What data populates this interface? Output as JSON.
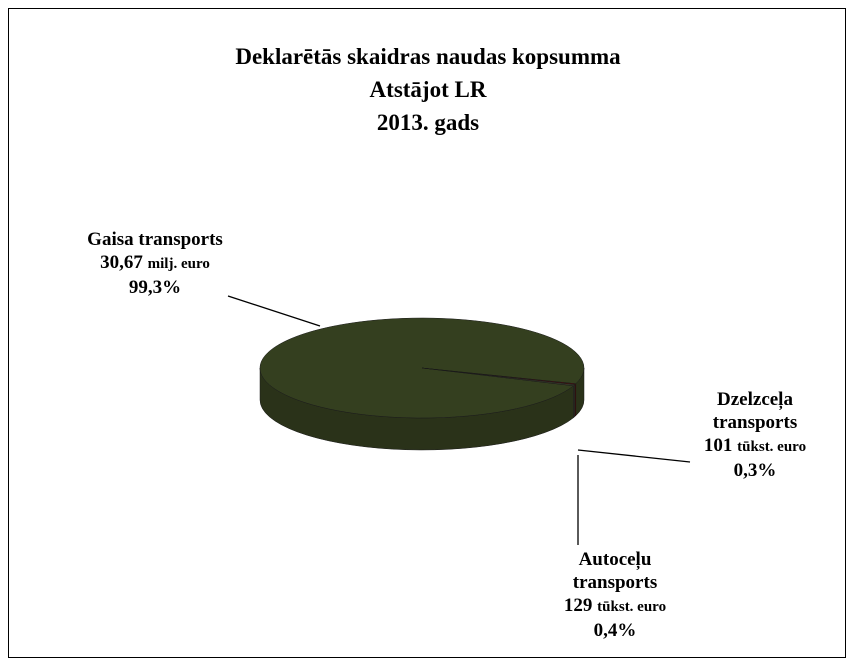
{
  "chart_data": {
    "type": "pie",
    "title_lines": [
      "Deklarētās skaidras naudas kopsumma",
      "Atstājot LR",
      "2013. gads"
    ],
    "categories": [
      "Gaisa transports",
      "Dzelzceļa transports",
      "Autoceļu transports"
    ],
    "values": [
      99.3,
      0.3,
      0.4
    ],
    "value_labels": [
      "99,3%",
      "0,3%",
      "0,4%"
    ],
    "amount_labels": [
      "30,67",
      "101",
      "129"
    ],
    "amount_units": [
      "milj. euro",
      "tūkst. euro",
      "tūkst. euro"
    ],
    "colors": [
      "#343f1f",
      "#5e0b0b",
      "#3c3c2c"
    ]
  }
}
